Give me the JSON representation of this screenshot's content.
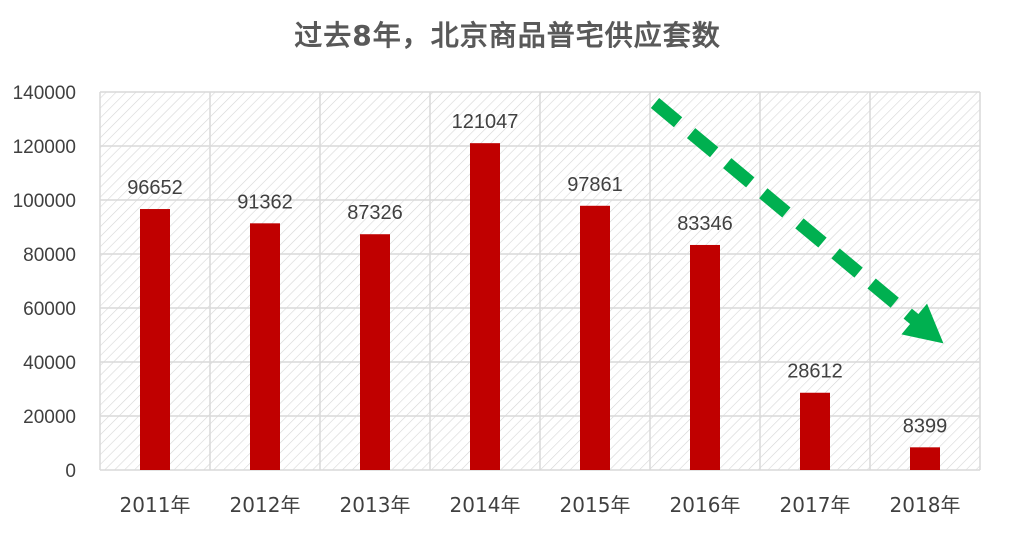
{
  "chart_data": {
    "type": "bar",
    "title": "过去8年，北京商品普宅供应套数",
    "categories": [
      "2011年",
      "2012年",
      "2013年",
      "2014年",
      "2015年",
      "2016年",
      "2017年",
      "2018年"
    ],
    "values": [
      96652,
      91362,
      87326,
      121047,
      97861,
      83346,
      28612,
      8399
    ],
    "ylim": [
      0,
      140000
    ],
    "yticks": [
      0,
      20000,
      40000,
      60000,
      80000,
      100000,
      120000,
      140000
    ],
    "grid": true,
    "bar_color": "#c00000",
    "grid_color": "#d9d9d9",
    "annotation": {
      "type": "arrow",
      "style": "dashed",
      "color": "#00b050",
      "direction": "down-right"
    }
  }
}
